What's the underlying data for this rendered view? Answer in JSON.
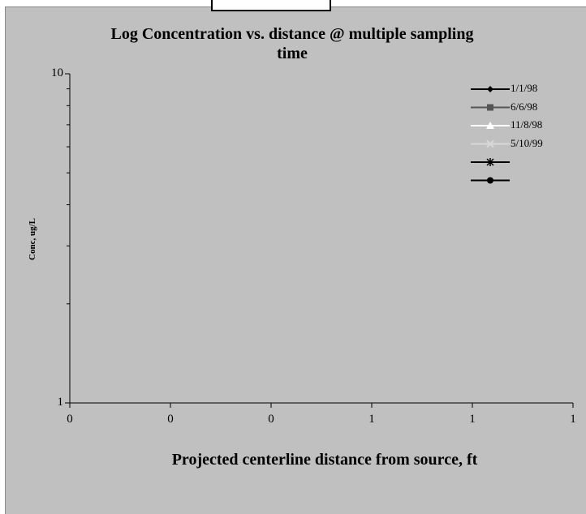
{
  "chart_data": {
    "type": "line",
    "title_lines": [
      "Log Concentration vs. distance @ multiple sampling",
      "time"
    ],
    "xlabel": "Projected centerline distance from source, ft",
    "ylabel": "Conc, ug/L",
    "y_scale": "log",
    "ylim": [
      1,
      10
    ],
    "y_tick_labels": [
      "10",
      "1"
    ],
    "x_tick_labels": [
      "0",
      "0",
      "0",
      "1",
      "1",
      "1"
    ],
    "grid": false,
    "legend_position": "top-right",
    "series": [
      {
        "name": "1/1/98",
        "marker": "diamond",
        "color": "#000000",
        "values": []
      },
      {
        "name": "6/6/98",
        "marker": "square",
        "color": "#555555",
        "values": []
      },
      {
        "name": "11/8/98",
        "marker": "triangle",
        "color": "#ffffff",
        "values": []
      },
      {
        "name": "5/10/99",
        "marker": "cross",
        "color": "#d8d8d8",
        "values": []
      },
      {
        "name": "",
        "marker": "star",
        "color": "#000000",
        "values": []
      },
      {
        "name": "",
        "marker": "circle",
        "color": "#000000",
        "values": []
      }
    ],
    "colors": {
      "plot_background": "#c0c0c0",
      "axis": "#000000"
    }
  }
}
